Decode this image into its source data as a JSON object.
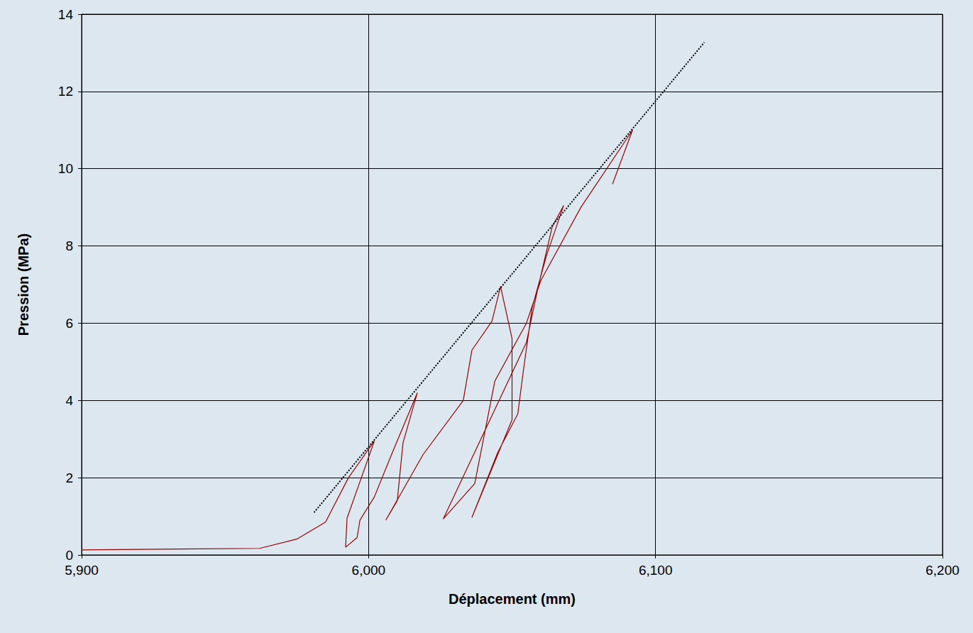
{
  "chart_data": {
    "type": "line",
    "x_label": "Déplacement (mm)",
    "y_label": "Pression (MPa)",
    "xlim": [
      5.9,
      6.2
    ],
    "xticks": [
      {
        "value": 5.9,
        "label": "5,900"
      },
      {
        "value": 6.0,
        "label": "6,000"
      },
      {
        "value": 6.1,
        "label": "6,100"
      },
      {
        "value": 6.2,
        "label": "6,200"
      }
    ],
    "ylim": [
      0,
      14
    ],
    "yticks": [
      0,
      2,
      4,
      6,
      8,
      10,
      12,
      14
    ],
    "grid": true,
    "series": [
      {
        "color": "#990000",
        "line_style": "solid",
        "x": [
          5.9,
          5.962,
          5.975,
          5.985,
          5.993,
          6.002,
          5.9925,
          5.992,
          5.996,
          5.997,
          6.002,
          6.008,
          6.017,
          6.012,
          6.01,
          6.006,
          6.019,
          6.033,
          6.036,
          6.043,
          6.046,
          6.05,
          6.05,
          6.036,
          6.045,
          6.052,
          6.054,
          6.057,
          6.062,
          6.068,
          6.064,
          6.059,
          6.055,
          6.026,
          6.037,
          6.044,
          6.055,
          6.06,
          6.074,
          6.092,
          6.085
        ],
        "values": [
          0.13,
          0.17,
          0.41,
          0.85,
          2.0,
          2.95,
          0.95,
          0.2,
          0.45,
          0.9,
          1.5,
          2.6,
          4.2,
          2.9,
          1.4,
          0.9,
          2.6,
          4.0,
          5.3,
          6.05,
          6.95,
          5.6,
          3.5,
          0.97,
          2.65,
          3.65,
          4.8,
          6.4,
          7.75,
          9.05,
          8.5,
          6.9,
          5.5,
          0.93,
          1.85,
          4.5,
          6.0,
          7.1,
          9.0,
          11.0,
          9.6
        ]
      },
      {
        "color": "#000000",
        "line_style": "dotted",
        "x": [
          5.981,
          6.117
        ],
        "values": [
          1.1,
          13.27
        ]
      }
    ]
  }
}
